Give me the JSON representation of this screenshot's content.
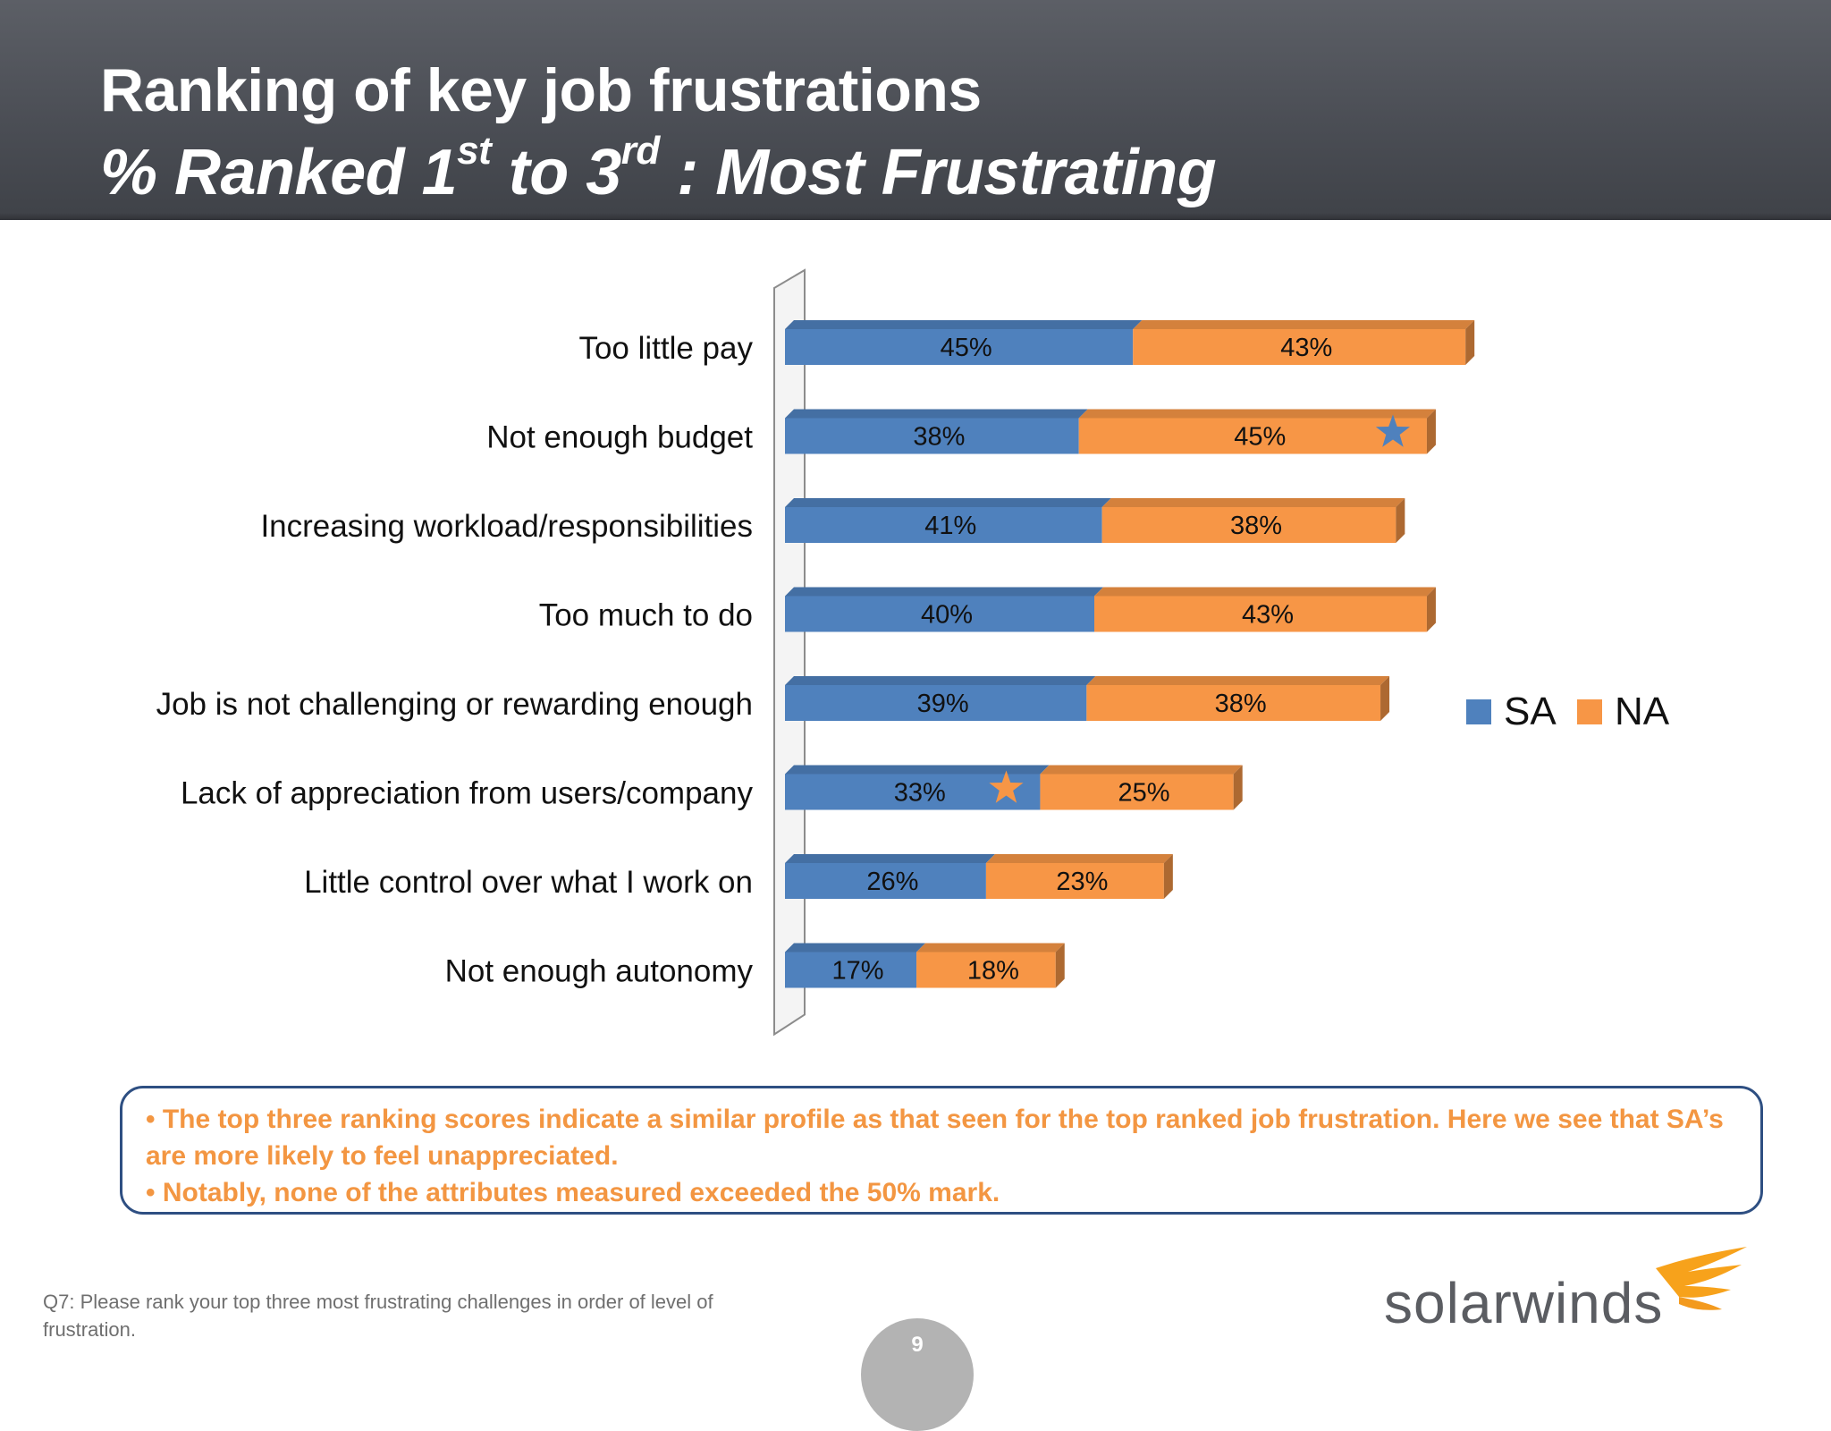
{
  "header": {
    "title": "Ranking of key job frustrations",
    "subtitle_part1": "% Ranked 1",
    "subtitle_sup1": "st",
    "subtitle_part2": " to 3",
    "subtitle_sup2": "rd",
    "subtitle_part3": " :  Most Frustrating"
  },
  "chart_data": {
    "type": "bar",
    "orientation": "horizontal",
    "stacked": true,
    "categories": [
      "Too little pay",
      "Not enough budget",
      "Increasing workload/responsibilities",
      "Too much to do",
      "Job is not challenging or rewarding enough",
      "Lack of appreciation from users/company",
      "Little control over what I work on",
      "Not enough autonomy"
    ],
    "series": [
      {
        "name": "SA",
        "color": "#4f81bd",
        "values": [
          45,
          38,
          41,
          40,
          39,
          33,
          26,
          17
        ],
        "labels": [
          "45%",
          "38%",
          "41%",
          "40%",
          "39%",
          "33%",
          "26%",
          "17%"
        ]
      },
      {
        "name": "NA",
        "color": "#f79646",
        "values": [
          43,
          45,
          38,
          43,
          38,
          25,
          23,
          18
        ],
        "labels": [
          "43%",
          "45%",
          "38%",
          "43%",
          "38%",
          "25%",
          "23%",
          "18%"
        ]
      }
    ],
    "annotations": [
      {
        "type": "star",
        "category": "Not enough budget",
        "series": "NA",
        "color": "#4f81bd"
      },
      {
        "type": "star",
        "category": "Lack of appreciation from users/company",
        "series": "SA",
        "color": "#f79646"
      }
    ],
    "legend": "right",
    "grid": false,
    "style": "3d"
  },
  "callout": {
    "bullet1": "• The top three ranking scores indicate a similar profile as that seen for the top ranked job frustration.  Here we see that SA’s are more likely to feel unappreciated.",
    "bullet2": "• Notably, none of the attributes measured exceeded the 50% mark."
  },
  "footnote": "Q7: Please rank your top three most frustrating challenges in order of level of frustration.",
  "logo": {
    "text": "solarwinds"
  },
  "page_number": "9"
}
